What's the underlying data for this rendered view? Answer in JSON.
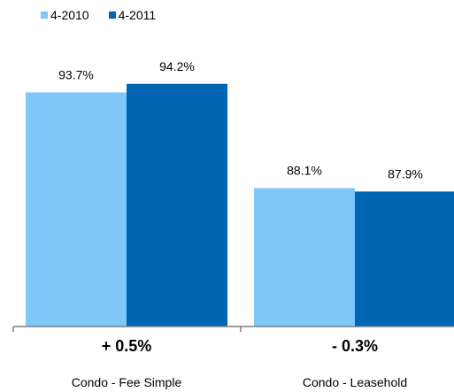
{
  "chart_data": {
    "type": "bar",
    "categories": [
      "Condo - Fee Simple",
      "Condo - Leasehold"
    ],
    "series": [
      {
        "name": "4-2010",
        "values": [
          93.7,
          88.1
        ],
        "labels": [
          "93.7%",
          "88.1%"
        ],
        "color": "#7fc6fb"
      },
      {
        "name": "4-2011",
        "values": [
          94.2,
          87.9
        ],
        "labels": [
          "94.2%",
          "87.9%"
        ],
        "color": "#0066b3"
      }
    ],
    "changes": [
      "+ 0.5%",
      "- 0.3%"
    ],
    "ylim": [
      80,
      96
    ],
    "legend_position": "top-left",
    "grid": false,
    "title": "",
    "xlabel": "",
    "ylabel": ""
  }
}
